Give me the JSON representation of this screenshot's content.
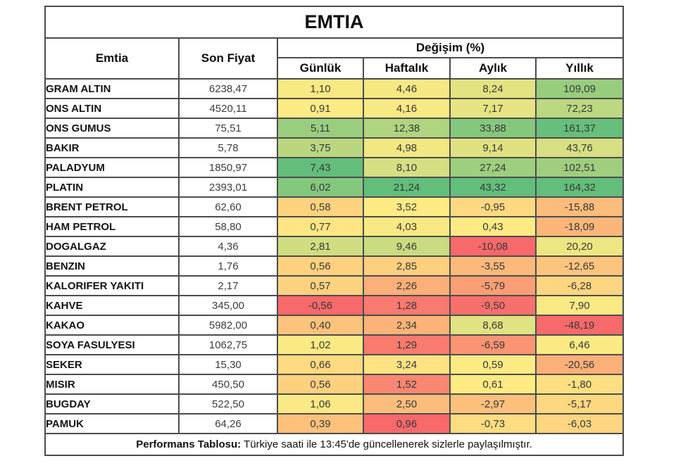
{
  "title": "EMTIA",
  "chart_data": {
    "type": "table",
    "columns": {
      "emtia": "Emtia",
      "son_fiyat": "Son Fiyat",
      "degisim_group": "Değişim (%)",
      "periods": [
        "Günlük",
        "Haftalık",
        "Aylık",
        "Yıllık"
      ]
    },
    "rows": [
      {
        "name": "GRAM ALTIN",
        "price": "6238,47",
        "changes": [
          "1,10",
          "4,46",
          "8,24",
          "109,09"
        ]
      },
      {
        "name": "ONS ALTIN",
        "price": "4520,11",
        "changes": [
          "0,91",
          "4,16",
          "7,17",
          "72,23"
        ]
      },
      {
        "name": "ONS GUMUS",
        "price": "75,51",
        "changes": [
          "5,11",
          "12,38",
          "33,88",
          "161,37"
        ]
      },
      {
        "name": "BAKIR",
        "price": "5,78",
        "changes": [
          "3,75",
          "4,98",
          "9,14",
          "43,76"
        ]
      },
      {
        "name": "PALADYUM",
        "price": "1850,97",
        "changes": [
          "7,43",
          "8,10",
          "27,24",
          "102,51"
        ]
      },
      {
        "name": "PLATIN",
        "price": "2393,01",
        "changes": [
          "6,02",
          "21,24",
          "43,32",
          "164,32"
        ]
      },
      {
        "name": "BRENT PETROL",
        "price": "62,60",
        "changes": [
          "0,58",
          "3,52",
          "-0,95",
          "-15,88"
        ]
      },
      {
        "name": "HAM PETROL",
        "price": "58,80",
        "changes": [
          "0,77",
          "4,03",
          "0,43",
          "-18,09"
        ]
      },
      {
        "name": "DOGALGAZ",
        "price": "4,36",
        "changes": [
          "2,81",
          "9,46",
          "-10,08",
          "20,20"
        ]
      },
      {
        "name": "BENZIN",
        "price": "1,76",
        "changes": [
          "0,56",
          "2,85",
          "-3,55",
          "-12,65"
        ]
      },
      {
        "name": "KALORIFER YAKITI",
        "price": "2,17",
        "changes": [
          "0,57",
          "2,26",
          "-5,79",
          "-6,28"
        ]
      },
      {
        "name": "KAHVE",
        "price": "345,00",
        "changes": [
          "-0,56",
          "1,28",
          "-9,50",
          "7,90"
        ]
      },
      {
        "name": "KAKAO",
        "price": "5982,00",
        "changes": [
          "0,40",
          "2,34",
          "8,68",
          "-48,19"
        ]
      },
      {
        "name": "SOYA FASULYESI",
        "price": "1062,75",
        "changes": [
          "1,02",
          "1,29",
          "-6,59",
          "6,46"
        ]
      },
      {
        "name": "SEKER",
        "price": "15,30",
        "changes": [
          "0,66",
          "3,24",
          "0,59",
          "-20,56"
        ]
      },
      {
        "name": "MISIR",
        "price": "450,50",
        "changes": [
          "0,56",
          "1,52",
          "0,61",
          "-1,80"
        ]
      },
      {
        "name": "BUGDAY",
        "price": "522,50",
        "changes": [
          "1,06",
          "2,50",
          "-2,97",
          "-5,17"
        ]
      },
      {
        "name": "PAMUK",
        "price": "64,26",
        "changes": [
          "0,39",
          "0,96",
          "-0,73",
          "-6,03"
        ]
      }
    ],
    "color_scale": {
      "scope": "per-column",
      "min_color": "#F8696B",
      "mid_color": "#FFEB84",
      "max_color": "#63BE7B"
    }
  },
  "footer": {
    "label": "Performans Tablosu:",
    "text": " Türkiye saati ile 13:45'de güncellenerek sizlerle paylaşılmıştır."
  }
}
